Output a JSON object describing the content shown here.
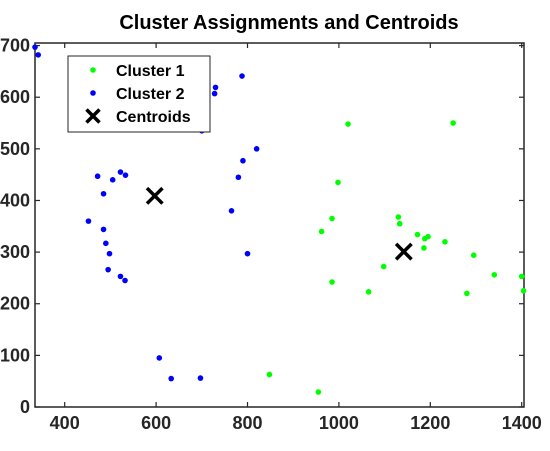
{
  "chart_data": {
    "type": "scatter",
    "title": "Cluster Assignments and Centroids",
    "xlabel": "",
    "ylabel": "",
    "xlim": [
      335,
      1405
    ],
    "ylim": [
      0,
      705
    ],
    "xticks": [
      400,
      600,
      800,
      1000,
      1200,
      1400
    ],
    "yticks": [
      0,
      100,
      200,
      300,
      400,
      500,
      600,
      700
    ],
    "grid": false,
    "legend_position": "top-left",
    "series": [
      {
        "name": "Cluster 1",
        "color": "#00ff00",
        "marker": "dot",
        "points": [
          [
            1020,
            548
          ],
          [
            1250,
            550
          ],
          [
            998,
            435
          ],
          [
            985,
            365
          ],
          [
            962,
            340
          ],
          [
            1130,
            368
          ],
          [
            1133,
            355
          ],
          [
            1172,
            334
          ],
          [
            1188,
            326
          ],
          [
            1195,
            330
          ],
          [
            1186,
            308
          ],
          [
            1232,
            320
          ],
          [
            1295,
            294
          ],
          [
            1098,
            272
          ],
          [
            1340,
            256
          ],
          [
            1400,
            253
          ],
          [
            1404,
            225
          ],
          [
            1280,
            220
          ],
          [
            985,
            242
          ],
          [
            1065,
            223
          ],
          [
            848,
            63
          ],
          [
            955,
            29
          ]
        ]
      },
      {
        "name": "Cluster 2",
        "color": "#0000ff",
        "marker": "dot",
        "points": [
          [
            335,
            697
          ],
          [
            342,
            682
          ],
          [
            730,
            619
          ],
          [
            728,
            607
          ],
          [
            788,
            641
          ],
          [
            700,
            535
          ],
          [
            820,
            500
          ],
          [
            790,
            477
          ],
          [
            780,
            445
          ],
          [
            765,
            380
          ],
          [
            800,
            297
          ],
          [
            472,
            447
          ],
          [
            485,
            413
          ],
          [
            505,
            440
          ],
          [
            522,
            455
          ],
          [
            533,
            449
          ],
          [
            452,
            360
          ],
          [
            485,
            344
          ],
          [
            490,
            317
          ],
          [
            498,
            297
          ],
          [
            495,
            266
          ],
          [
            522,
            253
          ],
          [
            532,
            245
          ],
          [
            607,
            95
          ],
          [
            633,
            55
          ],
          [
            697,
            56
          ]
        ]
      },
      {
        "name": "Centroids",
        "color": "#000000",
        "marker": "x",
        "points": [
          [
            597,
            409
          ],
          [
            1142,
            301
          ]
        ]
      }
    ]
  }
}
